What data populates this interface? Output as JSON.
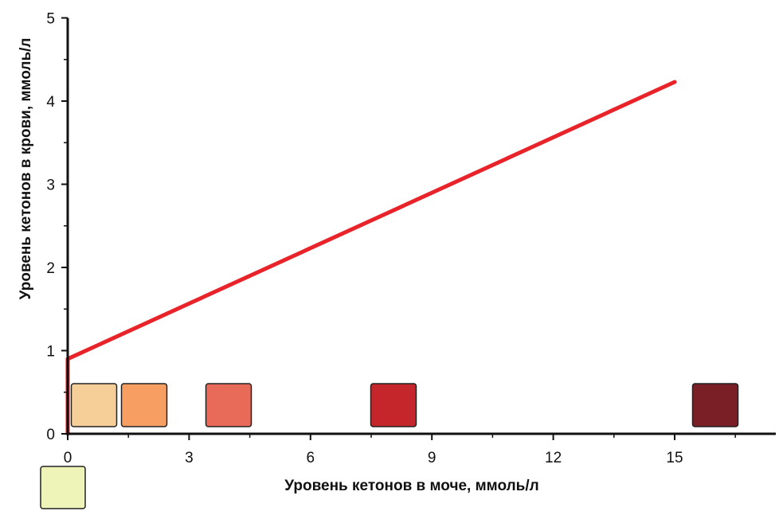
{
  "chart_data": {
    "type": "line",
    "title": "",
    "xlabel": "Уровень кетонов в моче, ммоль/л",
    "ylabel": "Уровень кетонов в крови, ммоль/л",
    "xlim": [
      0,
      17.5
    ],
    "ylim": [
      0,
      5
    ],
    "x_ticks": [
      0,
      3,
      6,
      9,
      12,
      15
    ],
    "y_ticks": [
      0,
      1,
      2,
      3,
      4,
      5
    ],
    "grid": false,
    "legend": "none",
    "series": [
      {
        "color": "#e8242a",
        "points": [
          {
            "x": 0,
            "y": 0
          },
          {
            "x": 0,
            "y": 0.9
          },
          {
            "x": 15,
            "y": 4.23
          }
        ]
      }
    ],
    "color_swatches": [
      {
        "urine_ketones": 0,
        "color": "#eef3b8"
      },
      {
        "urine_ketones": 0.5,
        "color": "#f6cf98"
      },
      {
        "urine_ketones": 1.5,
        "color": "#f79e62"
      },
      {
        "urine_ketones": 4,
        "color": "#e86a58"
      },
      {
        "urine_ketones": 8,
        "color": "#c5262b"
      },
      {
        "urine_ketones": 16,
        "color": "#7a1f25"
      }
    ]
  }
}
